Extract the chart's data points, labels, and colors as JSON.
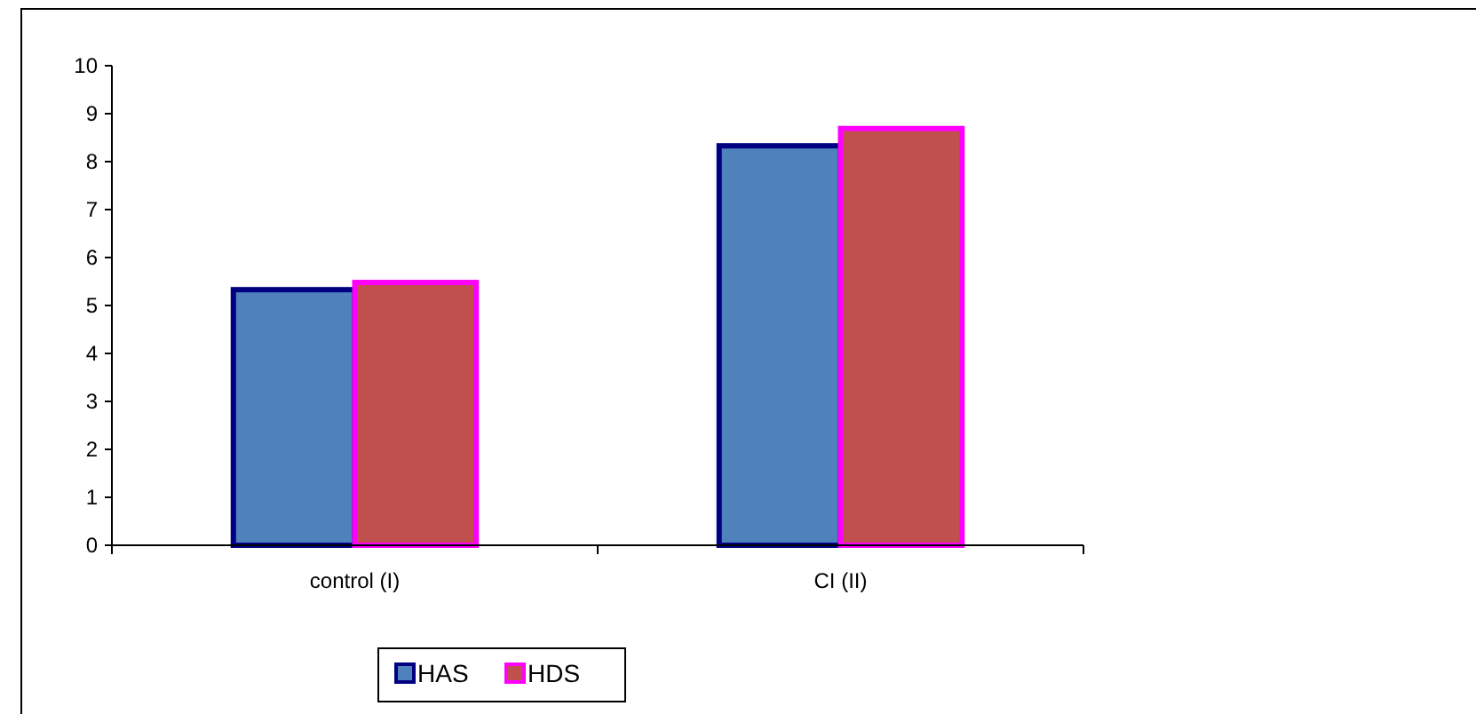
{
  "chart_data": {
    "type": "bar",
    "categories": [
      "control (I)",
      "CI (II)"
    ],
    "series": [
      {
        "name": "HAS",
        "color": "#4f81bd",
        "values": [
          5.33,
          8.33
        ]
      },
      {
        "name": "HDS",
        "color": "#c0504d",
        "values": [
          5.48,
          8.69
        ]
      }
    ],
    "ylim": [
      0,
      10
    ],
    "yticks": [
      0,
      1,
      2,
      3,
      4,
      5,
      6,
      7,
      8,
      9,
      10
    ],
    "grid": false,
    "legend": "bottom"
  }
}
